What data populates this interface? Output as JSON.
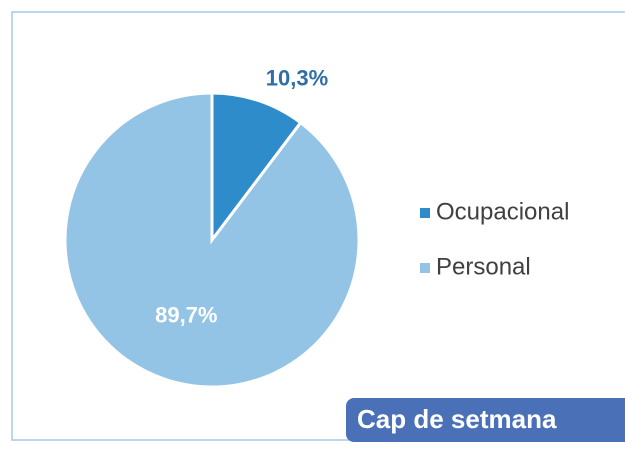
{
  "chart_data": {
    "type": "pie",
    "categories": [
      "Ocupacional",
      "Personal"
    ],
    "values": [
      10.3,
      89.7
    ],
    "value_labels": [
      "10,3%",
      "89,7%"
    ],
    "colors": [
      "#2f8ccb",
      "#93c4e6"
    ],
    "annotation": "Cap de setmana"
  }
}
